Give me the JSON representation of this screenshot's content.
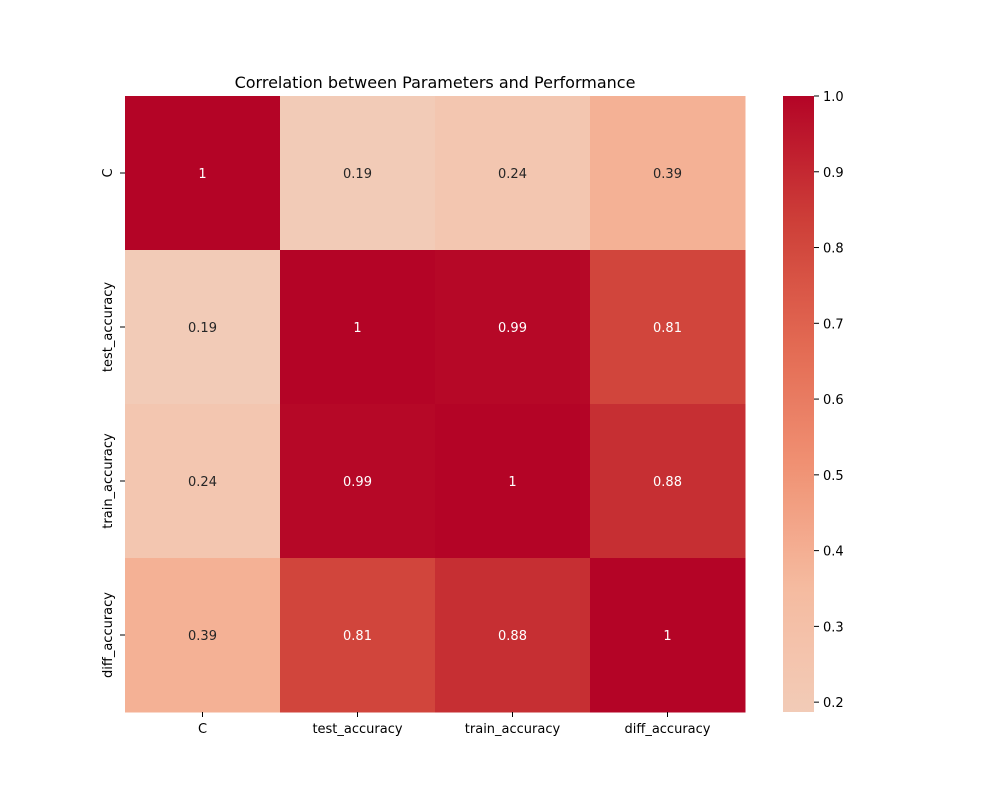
{
  "chart_data": {
    "type": "heatmap",
    "title": "Correlation between Parameters and Performance",
    "xlabel": "",
    "ylabel": "",
    "x_categories": [
      "C",
      "test_accuracy",
      "train_accuracy",
      "diff_accuracy"
    ],
    "y_categories": [
      "C",
      "test_accuracy",
      "train_accuracy",
      "diff_accuracy"
    ],
    "values": [
      [
        1,
        0.19,
        0.24,
        0.39
      ],
      [
        0.19,
        1,
        0.99,
        0.81
      ],
      [
        0.24,
        0.99,
        1,
        0.88
      ],
      [
        0.39,
        0.81,
        0.88,
        1
      ]
    ],
    "annotations": [
      [
        "1",
        "0.19",
        "0.24",
        "0.39"
      ],
      [
        "0.19",
        "1",
        "0.99",
        "0.81"
      ],
      [
        "0.24",
        "0.99",
        "1",
        "0.88"
      ],
      [
        "0.39",
        "0.81",
        "0.88",
        "1"
      ]
    ],
    "colormap": "coolwarm (upper half)",
    "colorbar": {
      "min": 0.187,
      "max": 1.0,
      "ticks": [
        0.2,
        0.3,
        0.4,
        0.5,
        0.6,
        0.7,
        0.8,
        0.9,
        1.0
      ],
      "tick_labels": [
        "0.2",
        "0.3",
        "0.4",
        "0.5",
        "0.6",
        "0.7",
        "0.8",
        "0.9",
        "1.0"
      ],
      "placement": "right"
    },
    "grid": false
  },
  "colors": {
    "light_text": "#ffffff",
    "dark_text": "#262626",
    "axis_text": "#000000"
  }
}
